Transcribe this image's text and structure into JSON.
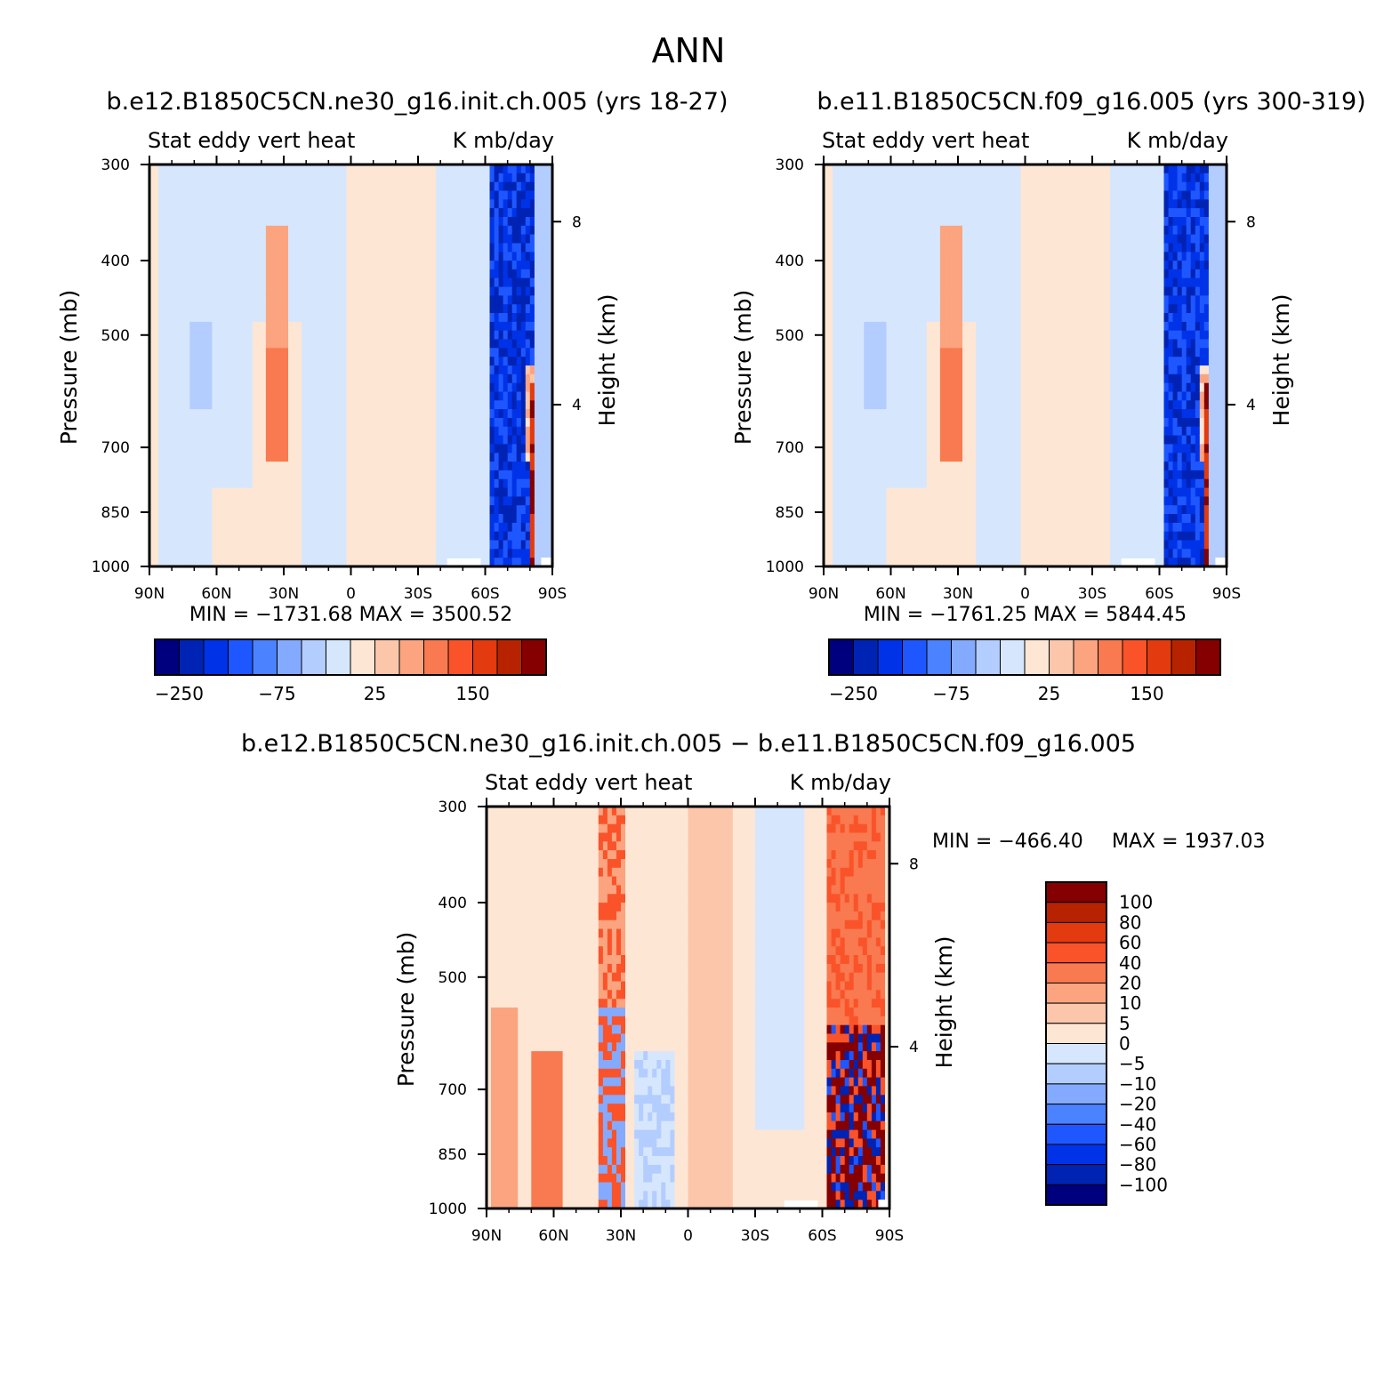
{
  "figure_title": "ANN",
  "chart_data": [
    {
      "type": "heatmap",
      "title": "b.e12.B1850C5CN.ne30_g16.init.ch.005 (yrs 18-27)",
      "subtitle_left": "Stat eddy vert heat",
      "subtitle_right": "K mb/day",
      "ylabel": "Pressure (mb)",
      "ylabel_right": "Height (km)",
      "y_scale": "log",
      "ylim": [
        1000,
        300
      ],
      "y_ticks": [
        "300",
        "400",
        "500",
        "700",
        "850",
        "1000"
      ],
      "y_right_ticks": [
        "8",
        "4"
      ],
      "x_ticks": [
        "90N",
        "60N",
        "30N",
        "0",
        "30S",
        "60S",
        "90S"
      ],
      "xlim": [
        90,
        -90
      ],
      "stats": "MIN = −1731.68   MAX = 3500.52",
      "colorbar_levels": [
        -250,
        -200,
        -150,
        -100,
        -75,
        -50,
        -25,
        0,
        25,
        50,
        75,
        100,
        150,
        200,
        250
      ],
      "colorbar_labels": [
        "−250",
        "−75",
        "25",
        "150"
      ],
      "features": [
        {
          "lat_from": -62,
          "lat_to": -82,
          "value": -250,
          "note": "strong negative column"
        },
        {
          "lat_from": 38,
          "lat_to": 28,
          "value": 40,
          "note": "positive plume"
        },
        {
          "lat_from": 0,
          "lat_to": -40,
          "value": 15
        }
      ]
    },
    {
      "type": "heatmap",
      "title": "b.e11.B1850C5CN.f09_g16.005 (yrs 300-319)",
      "subtitle_left": "Stat eddy vert heat",
      "subtitle_right": "K mb/day",
      "ylabel": "Pressure (mb)",
      "ylabel_right": "Height (km)",
      "y_scale": "log",
      "ylim": [
        1000,
        300
      ],
      "y_ticks": [
        "300",
        "400",
        "500",
        "700",
        "850",
        "1000"
      ],
      "y_right_ticks": [
        "8",
        "4"
      ],
      "x_ticks": [
        "90N",
        "60N",
        "30N",
        "0",
        "30S",
        "60S",
        "90S"
      ],
      "xlim": [
        90,
        -90
      ],
      "stats": "MIN = −1761.25   MAX = 5844.45",
      "colorbar_levels": [
        -250,
        -200,
        -150,
        -100,
        -75,
        -50,
        -25,
        0,
        25,
        50,
        75,
        100,
        150,
        200,
        250
      ],
      "colorbar_labels": [
        "−250",
        "−75",
        "25",
        "150"
      ],
      "features": [
        {
          "lat_from": -62,
          "lat_to": -82,
          "value": -250
        },
        {
          "lat_from": 38,
          "lat_to": 28,
          "value": 40
        },
        {
          "lat_from": 0,
          "lat_to": -40,
          "value": 15
        }
      ]
    },
    {
      "type": "heatmap",
      "title": "b.e12.B1850C5CN.ne30_g16.init.ch.005 − b.e11.B1850C5CN.f09_g16.005",
      "subtitle_left": "Stat eddy vert heat",
      "subtitle_right": "K mb/day",
      "ylabel": "Pressure (mb)",
      "ylabel_right": "Height (km)",
      "y_scale": "log",
      "ylim": [
        1000,
        300
      ],
      "y_ticks": [
        "300",
        "400",
        "500",
        "700",
        "850",
        "1000"
      ],
      "y_right_ticks": [
        "8",
        "4"
      ],
      "x_ticks": [
        "90N",
        "60N",
        "30N",
        "0",
        "30S",
        "60S",
        "90S"
      ],
      "xlim": [
        90,
        -90
      ],
      "stats_min": "MIN = −466.40",
      "stats_max": "MAX = 1937.03",
      "colorbar_levels": [
        100,
        80,
        60,
        40,
        20,
        10,
        5,
        0,
        -5,
        -10,
        -20,
        -40,
        -60,
        -80,
        -100
      ],
      "colorbar_labels": [
        "100",
        "80",
        "60",
        "40",
        "20",
        "10",
        "5",
        "0",
        "−5",
        "−10",
        "−20",
        "−40",
        "−60",
        "−80",
        "−100"
      ],
      "features": [
        {
          "lat_from": -62,
          "lat_to": -85,
          "value": 60,
          "note": "positive/negative mix near 70S"
        },
        {
          "lat_from": 40,
          "lat_to": 28,
          "value": 40
        },
        {
          "lat_from": 90,
          "lat_to": 40,
          "value": 5
        }
      ]
    }
  ],
  "colors": {
    "palette": [
      "#00007e",
      "#0023b4",
      "#0033e8",
      "#1e57ff",
      "#4a82ff",
      "#84aaff",
      "#b4cdff",
      "#d6e7fd",
      "#fde6d4",
      "#fcc6ab",
      "#fba47f",
      "#f97a50",
      "#fa532a",
      "#e33a10",
      "#b72300",
      "#850000"
    ]
  }
}
